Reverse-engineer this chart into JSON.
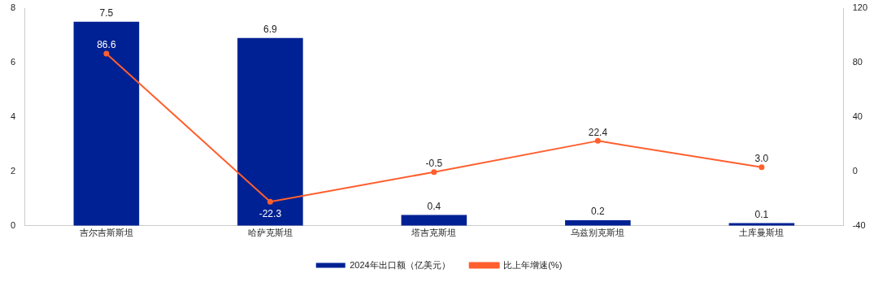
{
  "chart_data": {
    "type": "bar",
    "categories": [
      "吉尔吉斯斯坦",
      "哈萨克斯坦",
      "塔吉克斯坦",
      "乌兹别克斯坦",
      "土库曼斯坦"
    ],
    "series": [
      {
        "name": "2024年出口额（亿美元）",
        "color": "#002193",
        "values": [
          7.5,
          6.9,
          0.4,
          0.2,
          0.1
        ]
      },
      {
        "name": "比上年增速(%)",
        "type": "line",
        "axis": "y2",
        "color": "#ff5f2e",
        "values": [
          86.6,
          -22.3,
          -0.5,
          22.4,
          3.0
        ],
        "value_labels": [
          "86.6",
          "-22.3",
          "-0.5",
          "22.4",
          "3.0"
        ]
      }
    ],
    "data_labels": true,
    "ylim": [
      0,
      8
    ],
    "yticks": [
      0,
      2,
      4,
      6,
      8
    ],
    "y2lim": [
      -40,
      120
    ],
    "y2ticks": [
      -40,
      0,
      40,
      80,
      120
    ],
    "grid": false,
    "legend": "bottom",
    "marker": "circle",
    "line_style": "solid"
  }
}
